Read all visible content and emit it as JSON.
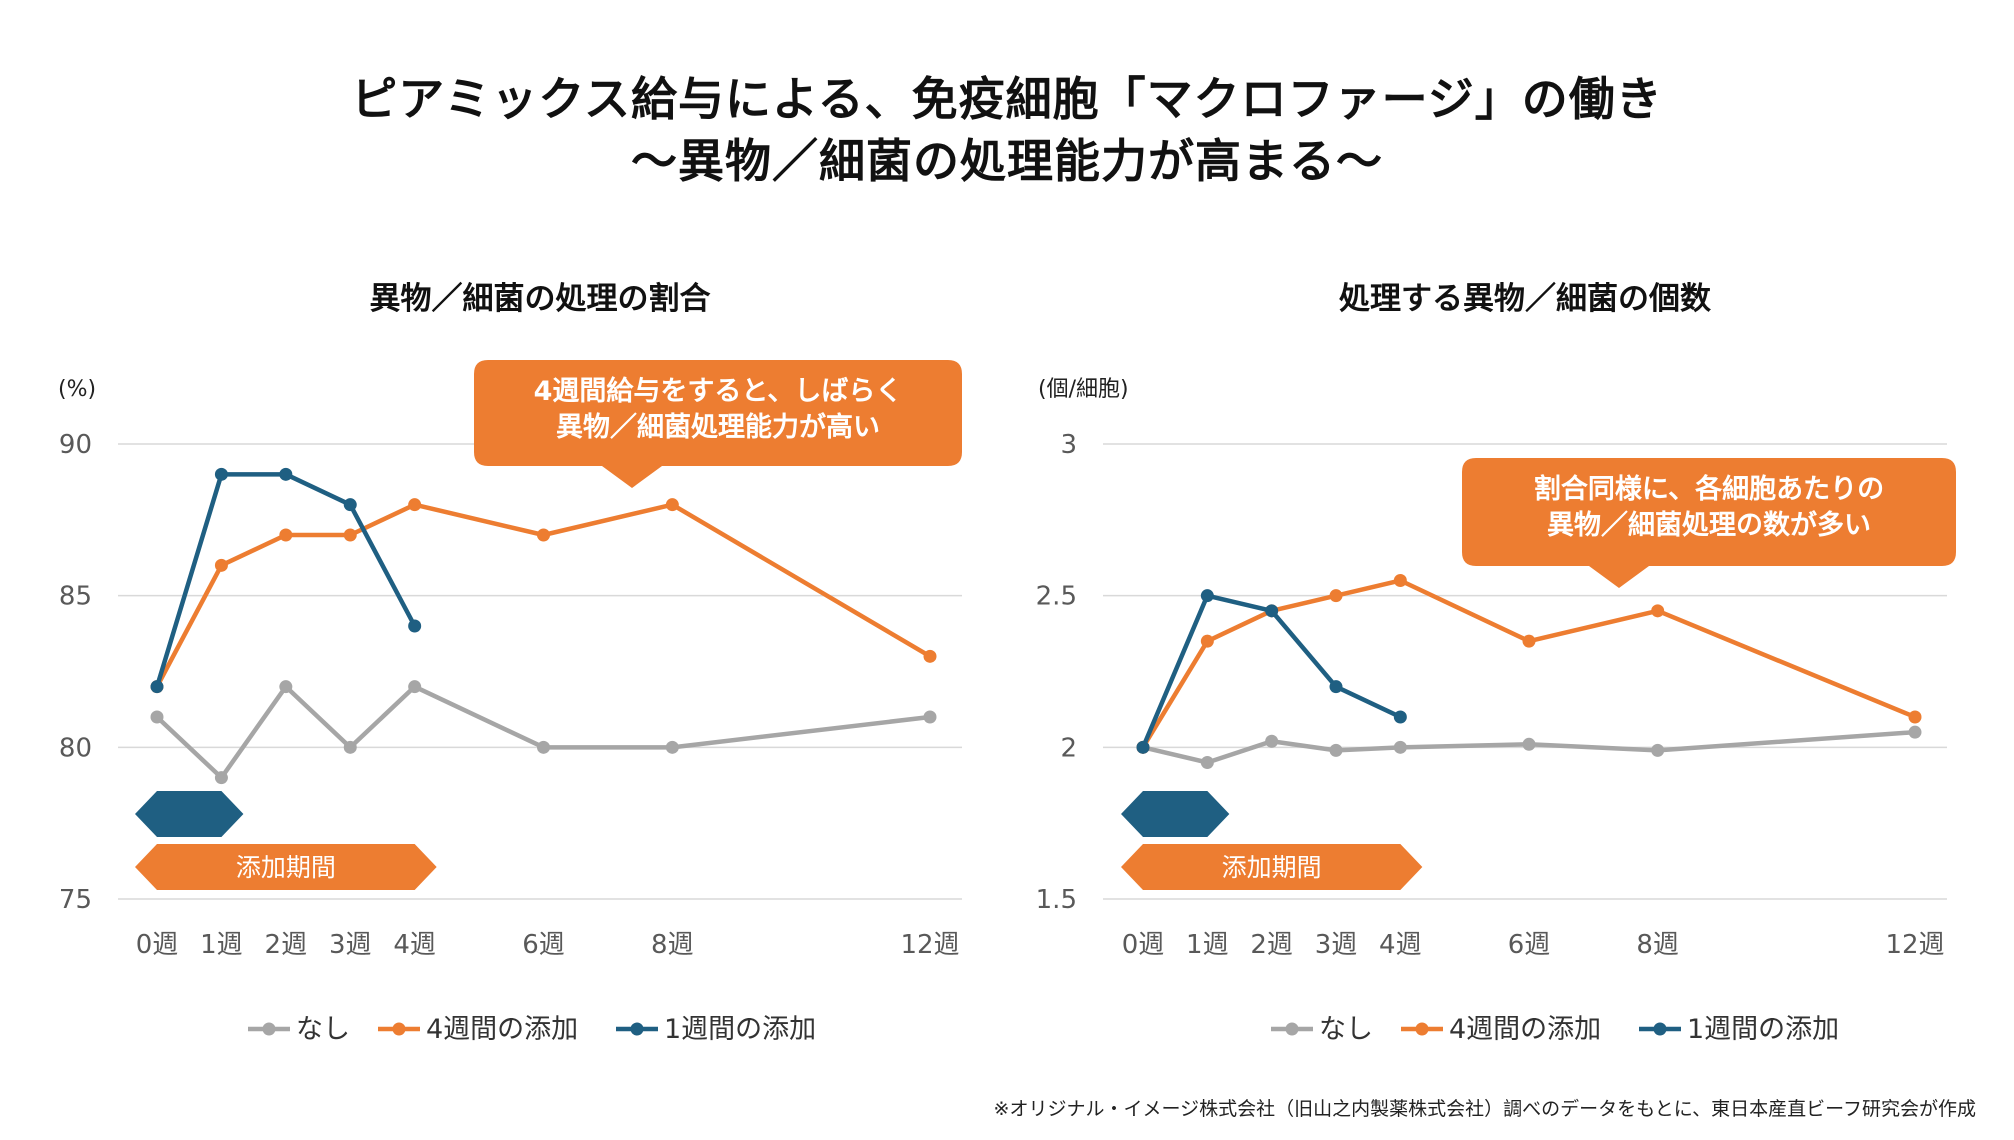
{
  "title": {
    "line1": "ピアミックス給与による、免疫細胞「マクロファージ」の働き",
    "line2": "～異物／細菌の処理能力が高まる～"
  },
  "footnote": "※オリジナル・イメージ株式会社（旧山之内製薬株式会社）調べのデータをもとに、東日本産直ビーフ研究会が作成",
  "colors": {
    "none": "#a6a6a6",
    "four_week": "#ed7d31",
    "one_week": "#1f5f82",
    "grid": "#d9d9d9",
    "axis_text": "#595959"
  },
  "chart_data": [
    {
      "type": "line",
      "title": "異物／細菌の処理の割合",
      "unit_label": "(%)",
      "x": [
        0,
        1,
        2,
        3,
        4,
        6,
        8,
        12
      ],
      "x_tick_labels": [
        "0週",
        "1週",
        "2週",
        "3週",
        "4週",
        "6週",
        "8週",
        "12週"
      ],
      "ylim": [
        75,
        90
      ],
      "y_ticks": [
        75,
        80,
        85,
        90
      ],
      "y_tick_labels": [
        "75",
        "80",
        "85",
        "90"
      ],
      "grid": true,
      "legend_position": "bottom",
      "series": [
        {
          "name": "なし",
          "color": "#a6a6a6",
          "x": [
            0,
            1,
            2,
            3,
            4,
            6,
            8,
            12
          ],
          "values": [
            81,
            79,
            82,
            80,
            82,
            80,
            80,
            81
          ]
        },
        {
          "name": "4週間の添加",
          "color": "#ed7d31",
          "x": [
            0,
            1,
            2,
            3,
            4,
            6,
            8,
            12
          ],
          "values": [
            82,
            86,
            87,
            87,
            88,
            87,
            88,
            83
          ]
        },
        {
          "name": "1週間の添加",
          "color": "#1f5f82",
          "x": [
            0,
            1,
            2,
            3,
            4
          ],
          "values": [
            82,
            89,
            89,
            88,
            84
          ]
        }
      ],
      "period_bars": [
        {
          "label": "",
          "color": "#1f5f82",
          "x_start": 0,
          "x_end": 1
        },
        {
          "label": "添加期間",
          "color": "#ed7d31",
          "x_start": 0,
          "x_end": 4
        }
      ],
      "callout": {
        "lines": [
          "4週間給与をすると、しばらく",
          "異物／細菌処理能力が高い"
        ],
        "color": "#ed7d31"
      }
    },
    {
      "type": "line",
      "title": "処理する異物／細菌の個数",
      "unit_label": "(個/細胞)",
      "x": [
        0,
        1,
        2,
        3,
        4,
        6,
        8,
        12
      ],
      "x_tick_labels": [
        "0週",
        "1週",
        "2週",
        "3週",
        "4週",
        "6週",
        "8週",
        "12週"
      ],
      "ylim": [
        1.5,
        3
      ],
      "y_ticks": [
        1.5,
        2,
        2.5,
        3
      ],
      "y_tick_labels": [
        "1.5",
        "2",
        "2.5",
        "3"
      ],
      "grid": true,
      "legend_position": "bottom",
      "series": [
        {
          "name": "なし",
          "color": "#a6a6a6",
          "x": [
            0,
            1,
            2,
            3,
            4,
            6,
            8,
            12
          ],
          "values": [
            2.0,
            1.95,
            2.02,
            1.99,
            2.0,
            2.01,
            1.99,
            2.05
          ]
        },
        {
          "name": "4週間の添加",
          "color": "#ed7d31",
          "x": [
            0,
            1,
            2,
            3,
            4,
            6,
            8,
            12
          ],
          "values": [
            2.0,
            2.35,
            2.45,
            2.5,
            2.55,
            2.35,
            2.45,
            2.1
          ]
        },
        {
          "name": "1週間の添加",
          "color": "#1f5f82",
          "x": [
            0,
            1,
            2,
            3,
            4
          ],
          "values": [
            2.0,
            2.5,
            2.45,
            2.2,
            2.1
          ]
        }
      ],
      "period_bars": [
        {
          "label": "",
          "color": "#1f5f82",
          "x_start": 0,
          "x_end": 1
        },
        {
          "label": "添加期間",
          "color": "#ed7d31",
          "x_start": 0,
          "x_end": 4
        }
      ],
      "callout": {
        "lines": [
          "割合同様に、各細胞あたりの",
          "異物／細菌処理の数が多い"
        ],
        "color": "#ed7d31"
      }
    }
  ]
}
